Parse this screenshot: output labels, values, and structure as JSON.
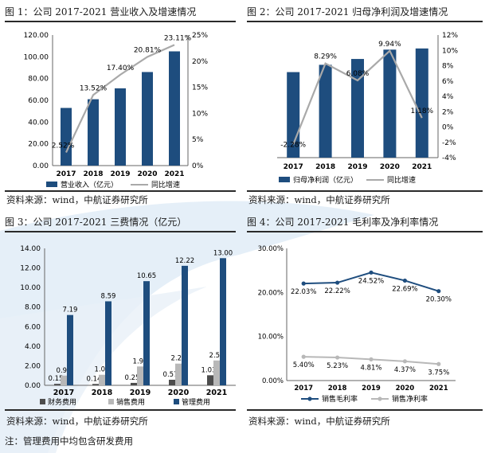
{
  "colors": {
    "bar_dark": "#1e4d7e",
    "bar_light": "#b8b8b8",
    "line_gray": "#a9a9a9",
    "line_navy": "#1e4d7e",
    "watermark": "#dce9f5"
  },
  "figures": [
    {
      "title": "图 1：公司 2017-2021 营业收入及增速情况",
      "source": "资料来源：wind，中航证券研究所"
    },
    {
      "title": "图 2：公司 2017-2021 归母净利润及增速情况",
      "source": "资料来源：wind，中航证券研究所"
    },
    {
      "title": "图 3：公司 2017-2021 三费情况（亿元）",
      "source": "资料来源：wind，中航证券研究所"
    },
    {
      "title": "图 4：公司 2017-2021 毛利率及净利率情况",
      "source": "资料来源：wind，中航证券研究所"
    }
  ],
  "note": "注：管理费用中均包含研发费用",
  "chart_data": [
    {
      "type": "bar",
      "categories": [
        "2017",
        "2018",
        "2019",
        "2020",
        "2021"
      ],
      "series": [
        {
          "name": "营业收入（亿元）",
          "values": [
            53,
            61,
            71,
            86,
            105
          ]
        },
        {
          "name": "同比增速",
          "values": [
            2.52,
            13.52,
            17.4,
            20.81,
            23.11
          ],
          "axis": "right",
          "type": "line"
        }
      ],
      "data_labels": [
        "2.52%",
        "13.52%",
        "17.40%",
        "20.81%",
        "23.11%"
      ],
      "y_ticks": [
        "0.00",
        "20.00",
        "40.00",
        "60.00",
        "80.00",
        "100.00",
        "120.00"
      ],
      "y2_ticks": [
        "0%",
        "5%",
        "10%",
        "15%",
        "20%",
        "25%"
      ],
      "ylim": [
        0,
        120
      ],
      "y2lim": [
        0,
        25
      ],
      "legend": "bottom"
    },
    {
      "type": "bar",
      "categories": [
        "2017",
        "2018",
        "2019",
        "2020",
        "2021"
      ],
      "series": [
        {
          "name": "归母净利润（亿元）",
          "values": [
            2.93,
            3.18,
            3.38,
            3.7,
            3.74
          ]
        },
        {
          "name": "同比增速",
          "values": [
            -2.28,
            8.29,
            6.08,
            9.94,
            1.18
          ],
          "axis": "right",
          "type": "line"
        }
      ],
      "data_labels": [
        "-2.28%",
        "8.29%",
        "6.08%",
        "9.94%",
        "1.18%"
      ],
      "y2_ticks": [
        "-4%",
        "-2%",
        "0%",
        "2%",
        "4%",
        "6%",
        "8%",
        "10%",
        "12%"
      ],
      "ylim": [
        0,
        4.2
      ],
      "y2lim": [
        -4,
        12
      ],
      "legend": "bottom"
    },
    {
      "type": "bar",
      "categories": [
        "2017",
        "2018",
        "2019",
        "2020",
        "2021"
      ],
      "series": [
        {
          "name": "财务费用",
          "values": [
            0.15,
            0.14,
            0.25,
            0.57,
            1.03
          ]
        },
        {
          "name": "销售费用",
          "values": [
            0.99,
            1.08,
            1.93,
            2.22,
            2.54
          ]
        },
        {
          "name": "管理费用",
          "values": [
            7.19,
            8.59,
            10.65,
            12.22,
            13.0
          ]
        }
      ],
      "data_labels": [
        [
          "0.15",
          "0.14",
          "0.25",
          "0.57",
          "1.03"
        ],
        [
          "0.99",
          "1.08",
          "1.93",
          "2.22",
          "2.54"
        ],
        [
          "7.19",
          "8.59",
          "10.65",
          "12.22",
          "13.00"
        ]
      ],
      "y_ticks": [
        "0.00",
        "2.00",
        "4.00",
        "6.00",
        "8.00",
        "10.00",
        "12.00",
        "14.00"
      ],
      "ylim": [
        0,
        14
      ],
      "legend": "bottom"
    },
    {
      "type": "line",
      "categories": [
        "2017",
        "2018",
        "2019",
        "2020",
        "2021"
      ],
      "series": [
        {
          "name": "销售毛利率",
          "values": [
            22.03,
            22.22,
            24.52,
            22.69,
            20.3
          ]
        },
        {
          "name": "销售净利率",
          "values": [
            5.4,
            5.23,
            4.81,
            4.37,
            3.75
          ]
        }
      ],
      "data_labels": [
        [
          "22.03%",
          "22.22%",
          "24.52%",
          "22.69%",
          "20.30%"
        ],
        [
          "5.40%",
          "5.23%",
          "4.81%",
          "4.37%",
          "3.75%"
        ]
      ],
      "y_ticks": [
        "0.00%",
        "10.00%",
        "20.00%",
        "30.00%"
      ],
      "ylim": [
        0,
        30
      ],
      "legend": "bottom"
    }
  ]
}
